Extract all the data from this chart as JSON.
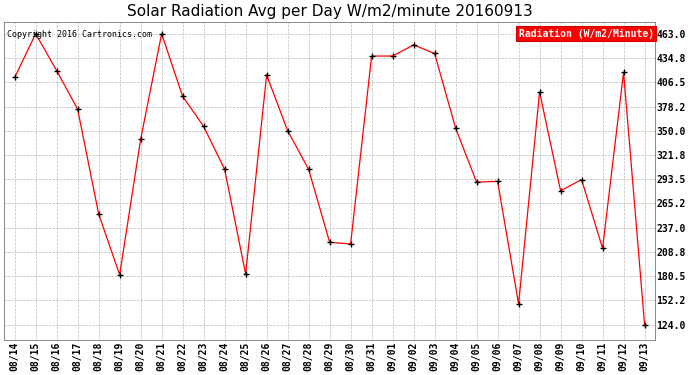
{
  "title": "Solar Radiation Avg per Day W/m2/minute 20160913",
  "copyright": "Copyright 2016 Cartronics.com",
  "legend_label": "Radiation (W/m2/Minute)",
  "dates": [
    "08/14",
    "08/15",
    "08/16",
    "08/17",
    "08/18",
    "08/19",
    "08/20",
    "08/21",
    "08/22",
    "08/23",
    "08/24",
    "08/25",
    "08/26",
    "08/27",
    "08/28",
    "08/29",
    "08/30",
    "08/31",
    "09/01",
    "09/02",
    "09/03",
    "09/04",
    "09/05",
    "09/06",
    "09/07",
    "09/08",
    "09/09",
    "09/10",
    "09/11",
    "09/12",
    "09/13"
  ],
  "values": [
    412,
    463,
    420,
    375,
    253,
    182,
    340,
    463,
    390,
    355,
    305,
    183,
    415,
    350,
    305,
    220,
    218,
    437,
    437,
    450,
    440,
    353,
    290,
    291,
    148,
    395,
    280,
    293,
    213,
    418,
    124
  ],
  "line_color": "red",
  "marker_color": "black",
  "bg_color": "#ffffff",
  "grid_color": "#bbbbbb",
  "yticks": [
    124.0,
    152.2,
    180.5,
    208.8,
    237.0,
    265.2,
    293.5,
    321.8,
    350.0,
    378.2,
    406.5,
    434.8,
    463.0
  ],
  "ylim": [
    106,
    477
  ],
  "title_fontsize": 11,
  "axis_fontsize": 7,
  "copyright_fontsize": 6,
  "legend_fontsize": 7
}
